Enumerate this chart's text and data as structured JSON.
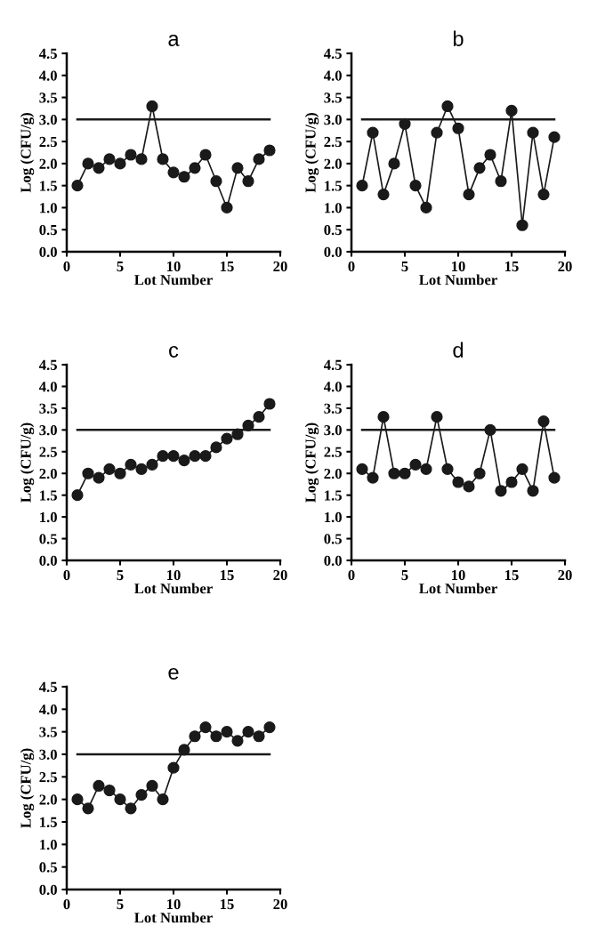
{
  "chart_data": [
    {
      "type": "line",
      "title": "a",
      "xlabel": "Lot Number",
      "ylabel": "Log (CFU/g)",
      "x": [
        1,
        2,
        3,
        4,
        5,
        6,
        7,
        8,
        9,
        10,
        11,
        12,
        13,
        14,
        15,
        16,
        17,
        18,
        19
      ],
      "series": [
        {
          "color": "#1a1a1a",
          "values": [
            1.5,
            2.0,
            1.9,
            2.1,
            2.0,
            2.2,
            2.1,
            3.3,
            2.1,
            1.8,
            1.7,
            1.9,
            2.2,
            1.6,
            1.0,
            1.9,
            1.6,
            2.1,
            2.3
          ]
        }
      ],
      "marker": "circle",
      "xlim": [
        0,
        20
      ],
      "xticks": [
        0,
        5,
        10,
        15,
        20
      ],
      "ylim": [
        0,
        4.5
      ],
      "yticks": [
        {
          "value": 0,
          "label": "0.0"
        },
        0.5,
        {
          "value": 1,
          "label": "1.0"
        },
        1.5,
        {
          "value": 2,
          "label": "2.0"
        },
        2.5,
        {
          "value": 3,
          "label": "3.0"
        },
        3.5,
        {
          "value": 4,
          "label": "4.0"
        },
        4.5
      ],
      "ref_lines": [
        {
          "axis": "y",
          "value": 3,
          "color": "#1a1a1a"
        }
      ],
      "grid": false,
      "legend": false
    },
    {
      "type": "line",
      "title": "b",
      "xlabel": "Lot Number",
      "ylabel": "Log (CFU/g)",
      "x": [
        1,
        2,
        3,
        4,
        5,
        6,
        7,
        8,
        9,
        10,
        11,
        12,
        13,
        14,
        15,
        16,
        17,
        18,
        19
      ],
      "series": [
        {
          "color": "#1a1a1a",
          "values": [
            1.5,
            2.7,
            1.3,
            2.0,
            2.9,
            1.5,
            1.0,
            2.7,
            3.3,
            2.8,
            1.3,
            1.9,
            2.2,
            1.6,
            3.2,
            0.6,
            2.7,
            1.3,
            2.6
          ]
        }
      ],
      "marker": "circle",
      "xlim": [
        0,
        20
      ],
      "xticks": [
        0,
        5,
        10,
        15,
        20
      ],
      "ylim": [
        0,
        4.5
      ],
      "yticks": [
        {
          "value": 0,
          "label": "0.0"
        },
        0.5,
        {
          "value": 1,
          "label": "1.0"
        },
        1.5,
        {
          "value": 2,
          "label": "2.0"
        },
        2.5,
        {
          "value": 3,
          "label": "3.0"
        },
        3.5,
        {
          "value": 4,
          "label": "4.0"
        },
        4.5
      ],
      "ref_lines": [
        {
          "axis": "y",
          "value": 3,
          "color": "#1a1a1a"
        }
      ],
      "grid": false,
      "legend": false
    },
    {
      "type": "line",
      "title": "c",
      "xlabel": "Lot Number",
      "ylabel": "Log (CFU/g)",
      "x": [
        1,
        2,
        3,
        4,
        5,
        6,
        7,
        8,
        9,
        10,
        11,
        12,
        13,
        14,
        15,
        16,
        17,
        18,
        19
      ],
      "series": [
        {
          "color": "#1a1a1a",
          "values": [
            1.5,
            2.0,
            1.9,
            2.1,
            2.0,
            2.2,
            2.1,
            2.2,
            2.4,
            2.4,
            2.3,
            2.4,
            2.4,
            2.6,
            2.8,
            2.9,
            3.1,
            3.3,
            3.6
          ]
        }
      ],
      "marker": "circle",
      "xlim": [
        0,
        20
      ],
      "xticks": [
        0,
        5,
        10,
        15,
        20
      ],
      "ylim": [
        0,
        4.5
      ],
      "yticks": [
        {
          "value": 0,
          "label": "0.0"
        },
        0.5,
        {
          "value": 1,
          "label": "1.0"
        },
        1.5,
        {
          "value": 2,
          "label": "2.0"
        },
        2.5,
        {
          "value": 3,
          "label": "3.0"
        },
        3.5,
        {
          "value": 4,
          "label": "4.0"
        },
        4.5
      ],
      "ref_lines": [
        {
          "axis": "y",
          "value": 3,
          "color": "#1a1a1a"
        }
      ],
      "grid": false,
      "legend": false
    },
    {
      "type": "line",
      "title": "d",
      "xlabel": "Lot Number",
      "ylabel": "Log (CFU/g)",
      "x": [
        1,
        2,
        3,
        4,
        5,
        6,
        7,
        8,
        9,
        10,
        11,
        12,
        13,
        14,
        15,
        16,
        17,
        18,
        19
      ],
      "series": [
        {
          "color": "#1a1a1a",
          "values": [
            2.1,
            1.9,
            3.3,
            2.0,
            2.0,
            2.2,
            2.1,
            3.3,
            2.1,
            1.8,
            1.7,
            2.0,
            3.0,
            1.6,
            1.8,
            2.1,
            1.6,
            3.2,
            1.9
          ]
        }
      ],
      "marker": "circle",
      "xlim": [
        0,
        20
      ],
      "xticks": [
        0,
        5,
        10,
        15,
        20
      ],
      "ylim": [
        0,
        4.5
      ],
      "yticks": [
        {
          "value": 0,
          "label": "0.0"
        },
        0.5,
        {
          "value": 1,
          "label": "1.0"
        },
        1.5,
        {
          "value": 2,
          "label": "2.0"
        },
        2.5,
        {
          "value": 3,
          "label": "3.0"
        },
        3.5,
        {
          "value": 4,
          "label": "4.0"
        },
        4.5
      ],
      "ref_lines": [
        {
          "axis": "y",
          "value": 3,
          "color": "#1a1a1a"
        }
      ],
      "grid": false,
      "legend": false
    },
    {
      "type": "line",
      "title": "e",
      "xlabel": "Lot Number",
      "ylabel": "Log (CFU/g)",
      "x": [
        1,
        2,
        3,
        4,
        5,
        6,
        7,
        8,
        9,
        10,
        11,
        12,
        13,
        14,
        15,
        16,
        17,
        18,
        19
      ],
      "series": [
        {
          "color": "#1a1a1a",
          "values": [
            2.0,
            1.8,
            2.3,
            2.2,
            2.0,
            1.8,
            2.1,
            2.3,
            2.0,
            2.7,
            3.1,
            3.4,
            3.6,
            3.4,
            3.5,
            3.3,
            3.5,
            3.4,
            3.6
          ]
        }
      ],
      "marker": "circle",
      "xlim": [
        0,
        20
      ],
      "xticks": [
        0,
        5,
        10,
        15,
        20
      ],
      "ylim": [
        0,
        4.5
      ],
      "yticks": [
        {
          "value": 0,
          "label": "0.0"
        },
        0.5,
        {
          "value": 1,
          "label": "1.0"
        },
        1.5,
        {
          "value": 2,
          "label": "2.0"
        },
        2.5,
        {
          "value": 3,
          "label": "3.0"
        },
        3.5,
        {
          "value": 4,
          "label": "4.0"
        },
        4.5
      ],
      "ref_lines": [
        {
          "axis": "y",
          "value": 3,
          "color": "#1a1a1a"
        }
      ],
      "grid": false,
      "legend": false
    }
  ]
}
